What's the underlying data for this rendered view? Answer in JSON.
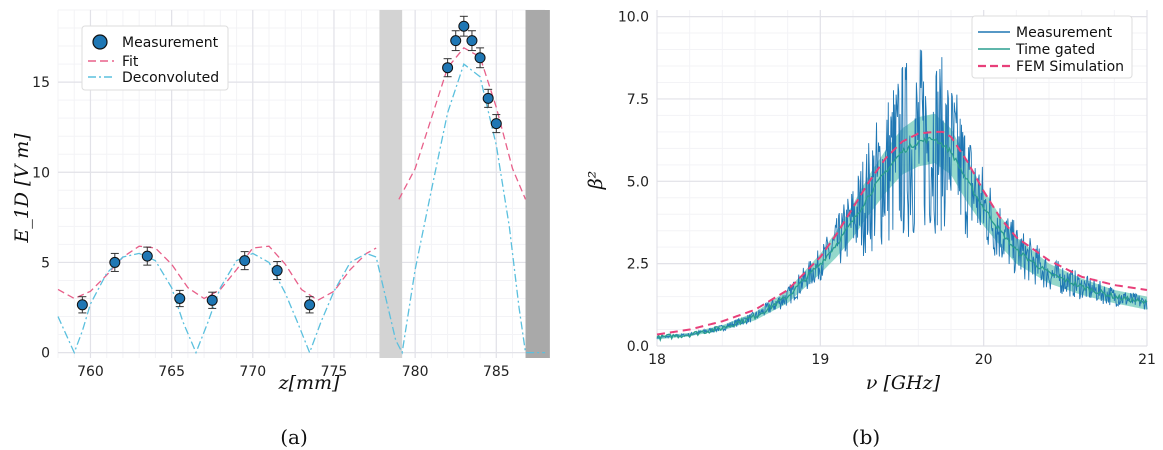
{
  "chart_data": [
    {
      "type": "scatter",
      "caption": "(a)",
      "xlabel": "z[mm]",
      "ylabel": "E_1D [V m]",
      "xlim": [
        758,
        788
      ],
      "ylim": [
        -0.3,
        19
      ],
      "xticks": [
        "760",
        "765",
        "770",
        "775",
        "780",
        "785"
      ],
      "yticks": [
        "0",
        "5",
        "10",
        "15"
      ],
      "shaded_regions": [
        {
          "x": [
            777.8,
            779.2
          ],
          "color": "#d3d3d3"
        },
        {
          "x": [
            786.8,
            788.3
          ],
          "color": "#a9a9a9"
        }
      ],
      "series": [
        {
          "name": "Measurement",
          "kind": "points",
          "color": "#1f77b4",
          "x": [
            759.5,
            761.5,
            763.5,
            765.5,
            767.5,
            769.5,
            771.5,
            773.5,
            782.0,
            782.5,
            783.0,
            783.5,
            784.0,
            784.5,
            785.0
          ],
          "y": [
            2.65,
            5.0,
            5.35,
            3.0,
            2.9,
            5.1,
            4.55,
            2.65,
            15.8,
            17.3,
            18.1,
            17.3,
            16.35,
            14.1,
            12.7
          ],
          "err": [
            0.45,
            0.5,
            0.5,
            0.45,
            0.45,
            0.5,
            0.5,
            0.45,
            0.5,
            0.55,
            0.55,
            0.55,
            0.55,
            0.5,
            0.5
          ]
        },
        {
          "name": "Fit",
          "kind": "dashed-line",
          "color": "#e8608a",
          "segments": [
            {
              "x": [
                758.0,
                759.0,
                760.0,
                761.0,
                762.0,
                763.0,
                764.0,
                765.0,
                766.0,
                767.0,
                768.0,
                769.0,
                770.0,
                771.0,
                772.0,
                773.0,
                774.0,
                775.0,
                776.0,
                777.0,
                777.6
              ],
              "y": [
                3.5,
                3.0,
                3.4,
                4.3,
                5.3,
                5.9,
                5.8,
                4.9,
                3.6,
                3.0,
                3.5,
                4.6,
                5.8,
                5.9,
                4.9,
                3.5,
                2.9,
                3.4,
                4.6,
                5.5,
                5.8
              ]
            },
            {
              "x": [
                779.0,
                780.0,
                781.0,
                782.0,
                783.0,
                784.0,
                785.0,
                786.0,
                786.8
              ],
              "y": [
                8.5,
                10.2,
                13.0,
                15.8,
                16.9,
                16.4,
                13.6,
                10.2,
                8.5
              ]
            }
          ]
        },
        {
          "name": "Deconvoluted",
          "kind": "dashdot-line",
          "color": "#5bc0de",
          "segments": [
            {
              "x": [
                758.0,
                758.5,
                759.0,
                759.5,
                760.0,
                761.0,
                762.0,
                763.0,
                764.0,
                765.0,
                765.7,
                766.5,
                767.2,
                768.0,
                769.0,
                770.0,
                771.0,
                772.0,
                772.7,
                773.5,
                774.2,
                775.0,
                776.0,
                777.0,
                777.6,
                778.2,
                778.8,
                779.2,
                780.0,
                781.0,
                782.0,
                783.0,
                784.0,
                785.0,
                785.8,
                786.4,
                786.8,
                787.4,
                788.0
              ],
              "y": [
                2.0,
                1.0,
                0.0,
                1.2,
                2.7,
                4.4,
                5.3,
                5.5,
                5.1,
                3.6,
                1.7,
                0.0,
                1.6,
                3.6,
                5.1,
                5.5,
                5.0,
                3.3,
                1.8,
                0.0,
                1.7,
                3.4,
                5.0,
                5.5,
                5.3,
                3.0,
                0.7,
                0.0,
                4.6,
                9.0,
                13.3,
                16.0,
                15.3,
                11.5,
                7.0,
                2.5,
                0.0,
                0.0,
                0.0
              ]
            }
          ]
        }
      ],
      "legend": {
        "position": "top-left",
        "entries": [
          "Measurement",
          "Fit",
          "Deconvoluted"
        ]
      },
      "grid": true
    },
    {
      "type": "line",
      "caption": "(b)",
      "xlabel": "ν [GHz]",
      "ylabel": "β²",
      "xlim": [
        18,
        21
      ],
      "ylim": [
        0,
        10.2
      ],
      "xticks": [
        "18",
        "19",
        "20",
        "21"
      ],
      "yticks": [
        "0.0",
        "2.5",
        "5.0",
        "7.5",
        "10.0"
      ],
      "series": [
        {
          "name": "Measurement",
          "kind": "noisy-line",
          "color": "#1f77b4",
          "x": [
            18.0,
            18.2,
            18.4,
            18.6,
            18.8,
            19.0,
            19.1,
            19.2,
            19.3,
            19.4,
            19.5,
            19.6,
            19.7,
            19.8,
            19.9,
            20.0,
            20.1,
            20.2,
            20.4,
            20.6,
            20.8,
            21.0
          ],
          "y": [
            0.25,
            0.35,
            0.55,
            0.9,
            1.5,
            2.5,
            3.1,
            3.8,
            4.6,
            5.3,
            5.9,
            6.2,
            6.3,
            5.9,
            5.0,
            4.2,
            3.5,
            2.9,
            2.2,
            1.8,
            1.5,
            1.3
          ],
          "noise": [
            0.03,
            0.05,
            0.1,
            0.15,
            0.3,
            0.5,
            0.8,
            1.2,
            1.8,
            2.4,
            2.8,
            3.0,
            2.9,
            2.4,
            1.8,
            1.3,
            1.0,
            0.8,
            0.55,
            0.4,
            0.3,
            0.2
          ],
          "peak_max": 10.1
        },
        {
          "name": "Time gated",
          "kind": "line-with-band",
          "color": "#2a9d8f",
          "band_color": "#3cb8a0",
          "x": [
            18.0,
            18.2,
            18.4,
            18.6,
            18.8,
            19.0,
            19.1,
            19.2,
            19.3,
            19.4,
            19.5,
            19.6,
            19.7,
            19.8,
            19.9,
            20.0,
            20.1,
            20.2,
            20.4,
            20.6,
            20.8,
            21.0
          ],
          "y": [
            0.25,
            0.35,
            0.55,
            0.9,
            1.5,
            2.5,
            3.1,
            3.8,
            4.6,
            5.3,
            5.9,
            6.2,
            6.3,
            5.9,
            5.0,
            4.2,
            3.5,
            2.9,
            2.2,
            1.8,
            1.5,
            1.3
          ],
          "band": [
            0.05,
            0.05,
            0.08,
            0.12,
            0.2,
            0.3,
            0.4,
            0.5,
            0.6,
            0.65,
            0.7,
            0.75,
            0.75,
            0.7,
            0.65,
            0.55,
            0.45,
            0.4,
            0.3,
            0.25,
            0.2,
            0.2
          ]
        },
        {
          "name": "FEM Simulation",
          "kind": "dashed-line",
          "color": "#e8407a",
          "x": [
            18.0,
            18.2,
            18.4,
            18.6,
            18.8,
            19.0,
            19.1,
            19.2,
            19.3,
            19.4,
            19.5,
            19.6,
            19.7,
            19.75,
            19.8,
            19.9,
            20.0,
            20.1,
            20.2,
            20.4,
            20.6,
            20.8,
            21.0
          ],
          "y": [
            0.35,
            0.5,
            0.75,
            1.1,
            1.7,
            2.7,
            3.4,
            4.2,
            5.0,
            5.7,
            6.2,
            6.45,
            6.5,
            6.5,
            6.35,
            5.6,
            4.7,
            3.9,
            3.3,
            2.6,
            2.1,
            1.85,
            1.7
          ]
        }
      ],
      "legend": {
        "position": "top-right",
        "entries": [
          "Measurement",
          "Time gated",
          "FEM Simulation"
        ]
      },
      "grid": true
    }
  ]
}
